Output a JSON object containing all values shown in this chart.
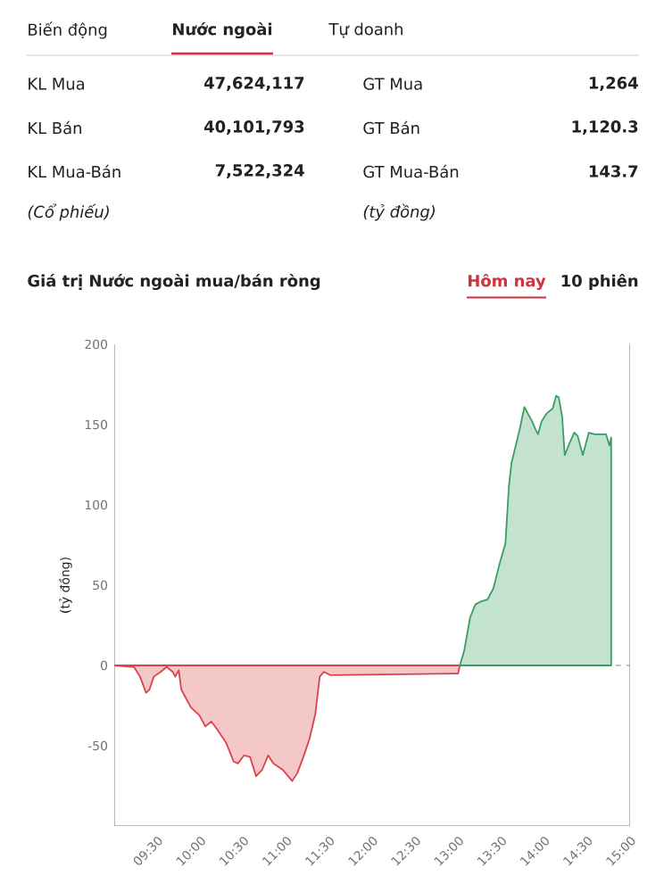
{
  "chart_data": [
    {
      "type": "other",
      "annotations": [
        "Biến động",
        "Nước ngoài",
        "Tự doanh",
        "KL Mua",
        "47,624,117",
        "GT Mua",
        "1,264",
        "KL Bán",
        "40,101,793",
        "GT Bán",
        "1,120.3",
        "KL Mua-Bán",
        "7,522,324",
        "GT Mua-Bán",
        "143.7",
        "(Cổ phiếu)",
        "(tỷ đồng)"
      ]
    },
    {
      "type": "area",
      "title": "Giá trị Nước ngoài mua/bán ròng",
      "ylabel": "(tỷ đồng)",
      "annotations": [
        "Hôm nay",
        "10 phiên"
      ],
      "xlim": [
        9,
        15
      ],
      "ylim": [
        -100,
        200
      ],
      "xticks": [
        {
          "value": 9,
          "label": null
        },
        {
          "value": 9.5,
          "label": "09:30"
        },
        {
          "value": 10,
          "label": "10:00"
        },
        {
          "value": 10.5,
          "label": "10:30"
        },
        {
          "value": 11,
          "label": "11:00"
        },
        {
          "value": 11.5,
          "label": "11:30"
        },
        {
          "value": 12,
          "label": "12:00"
        },
        {
          "value": 12.5,
          "label": "12:30"
        },
        {
          "value": 13,
          "label": "13:00"
        },
        {
          "value": 13.5,
          "label": "13:30"
        },
        {
          "value": 14,
          "label": "14:00"
        },
        {
          "value": 14.5,
          "label": "14:30"
        },
        {
          "value": 15,
          "label": "15:00"
        }
      ],
      "yticks": [
        200,
        150,
        100,
        50,
        0,
        -50
      ],
      "ref_lines": [
        {
          "axis": "y",
          "value": 0,
          "line_style": "dashed",
          "color": "#888888"
        }
      ],
      "series": [
        {
          "color": "#d9434b",
          "x": [
            9.0,
            9.23,
            9.3,
            9.37,
            9.41,
            9.46,
            9.54,
            9.61,
            9.68,
            9.71,
            9.75,
            9.78,
            9.89,
            9.99,
            10.06,
            10.13,
            10.2,
            10.3,
            10.39,
            10.44,
            10.51,
            10.58,
            10.65,
            10.72,
            10.79,
            10.85,
            10.96,
            11.07,
            11.13,
            11.2,
            11.27,
            11.34,
            11.39,
            11.44,
            11.51,
            13.0,
            13.02
          ],
          "values": [
            0,
            -1,
            -7,
            -17,
            -15,
            -7,
            -4,
            -1,
            -4,
            -7,
            -3,
            -15,
            -26,
            -31,
            -38,
            -35,
            -40,
            -48,
            -60,
            -61,
            -56,
            -57,
            -69,
            -65,
            -56,
            -61,
            -65,
            -72,
            -67,
            -57,
            -46,
            -30,
            -7,
            -4,
            -6,
            -5,
            0
          ]
        },
        {
          "color": "#3a9e63",
          "x": [
            13.02,
            13.07,
            13.14,
            13.2,
            13.27,
            13.34,
            13.41,
            13.48,
            13.55,
            13.59,
            13.62,
            13.68,
            13.72,
            13.77,
            13.81,
            13.86,
            13.9,
            13.93,
            13.97,
            14.03,
            14.1,
            14.14,
            14.17,
            14.21,
            14.24,
            14.3,
            14.35,
            14.39,
            14.45,
            14.52,
            14.59,
            14.72,
            14.76,
            14.78
          ],
          "values": [
            0,
            9,
            30,
            38,
            40,
            41,
            48,
            63,
            76,
            111,
            126,
            139,
            148,
            161,
            157,
            152,
            147,
            144,
            152,
            157,
            160,
            168,
            167,
            155,
            131,
            139,
            145,
            143,
            131,
            145,
            144,
            144,
            137,
            142
          ]
        }
      ]
    }
  ]
}
